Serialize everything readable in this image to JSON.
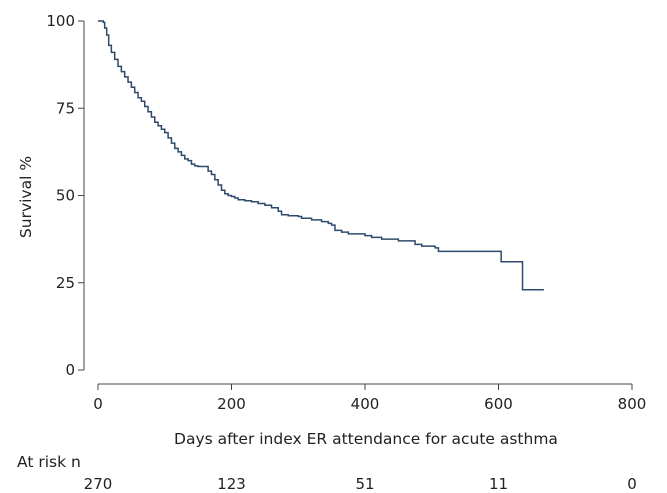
{
  "chart_data": {
    "type": "line",
    "xlabel": "Days after index ER attendance for acute asthma",
    "ylabel": "Survival %",
    "xlim": [
      0,
      800
    ],
    "ylim": [
      0,
      100
    ],
    "x_ticks": [
      0,
      200,
      400,
      600,
      800
    ],
    "y_ticks": [
      0,
      25,
      50,
      75,
      100
    ],
    "grid": false,
    "colors": {
      "line": "#2c4a6b",
      "axis": "#444444"
    },
    "series": [
      {
        "step": true,
        "points": [
          [
            0,
            100
          ],
          [
            5,
            100
          ],
          [
            8,
            99.6
          ],
          [
            10,
            98
          ],
          [
            13,
            96
          ],
          [
            16,
            93
          ],
          [
            20,
            91
          ],
          [
            25,
            89
          ],
          [
            30,
            87
          ],
          [
            35,
            85.5
          ],
          [
            40,
            84
          ],
          [
            45,
            82.5
          ],
          [
            50,
            81
          ],
          [
            55,
            79.5
          ],
          [
            60,
            78
          ],
          [
            65,
            77
          ],
          [
            70,
            75.5
          ],
          [
            75,
            74
          ],
          [
            80,
            72.5
          ],
          [
            85,
            71
          ],
          [
            90,
            70
          ],
          [
            95,
            69
          ],
          [
            100,
            68
          ],
          [
            105,
            66.5
          ],
          [
            110,
            65
          ],
          [
            115,
            63.5
          ],
          [
            120,
            62.5
          ],
          [
            125,
            61.5
          ],
          [
            130,
            60.5
          ],
          [
            135,
            60
          ],
          [
            140,
            59
          ],
          [
            145,
            58.5
          ],
          [
            150,
            58.3
          ],
          [
            155,
            58.3
          ],
          [
            160,
            58.3
          ],
          [
            165,
            57
          ],
          [
            170,
            56
          ],
          [
            175,
            54.5
          ],
          [
            180,
            53
          ],
          [
            185,
            51.5
          ],
          [
            190,
            50.5
          ],
          [
            195,
            50
          ],
          [
            200,
            49.7
          ],
          [
            205,
            49.3
          ],
          [
            210,
            48.8
          ],
          [
            220,
            48.5
          ],
          [
            230,
            48.2
          ],
          [
            240,
            47.7
          ],
          [
            250,
            47.2
          ],
          [
            260,
            46.5
          ],
          [
            270,
            45.5
          ],
          [
            275,
            44.5
          ],
          [
            285,
            44.2
          ],
          [
            300,
            44.0
          ],
          [
            305,
            43.5
          ],
          [
            320,
            43.0
          ],
          [
            335,
            42.5
          ],
          [
            345,
            42.0
          ],
          [
            350,
            41.5
          ],
          [
            355,
            40.0
          ],
          [
            365,
            39.5
          ],
          [
            375,
            39.0
          ],
          [
            400,
            38.5
          ],
          [
            410,
            38.0
          ],
          [
            425,
            37.5
          ],
          [
            450,
            37.0
          ],
          [
            475,
            36.0
          ],
          [
            485,
            35.5
          ],
          [
            505,
            35.0
          ],
          [
            510,
            34.0
          ],
          [
            520,
            34.0
          ],
          [
            603,
            34.0
          ],
          [
            604,
            31.0
          ],
          [
            635,
            31.0
          ],
          [
            636,
            23.0
          ],
          [
            668,
            23.0
          ]
        ]
      }
    ],
    "risk_table": {
      "title": "At risk n",
      "days": [
        0,
        200,
        400,
        600,
        800
      ],
      "values": [
        "270",
        "123",
        "51",
        "11",
        "0"
      ]
    }
  }
}
